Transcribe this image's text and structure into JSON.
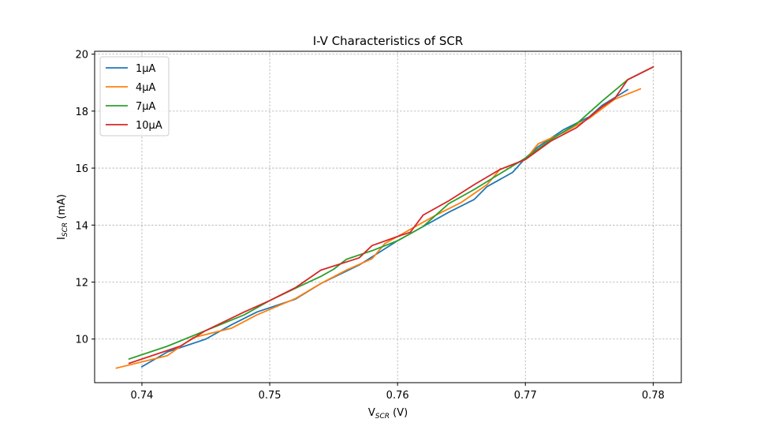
{
  "chart_data": {
    "type": "line",
    "title": "I-V Characteristics of SCR",
    "xlabel": {
      "main": "V",
      "sub": "SCR",
      "unit": " (V)"
    },
    "ylabel": {
      "main": "I",
      "sub": "SCR",
      "unit": " (mA)"
    },
    "xlim": [
      0.7363,
      0.7822
    ],
    "ylim": [
      8.47,
      20.1
    ],
    "xticks": [
      0.74,
      0.75,
      0.76,
      0.77,
      0.78
    ],
    "xtick_labels": [
      "0.74",
      "0.75",
      "0.76",
      "0.77",
      "0.78"
    ],
    "yticks": [
      10,
      12,
      14,
      16,
      18,
      20
    ],
    "ytick_labels": [
      "10",
      "12",
      "14",
      "16",
      "18",
      "20"
    ],
    "grid": true,
    "legend_position": "top-left",
    "series": [
      {
        "name": "1μA",
        "color": "#1f77b4",
        "points": [
          [
            0.74,
            9.03
          ],
          [
            0.742,
            9.55
          ],
          [
            0.745,
            10.0
          ],
          [
            0.747,
            10.5
          ],
          [
            0.749,
            10.95
          ],
          [
            0.752,
            11.4
          ],
          [
            0.754,
            11.95
          ],
          [
            0.757,
            12.6
          ],
          [
            0.76,
            13.45
          ],
          [
            0.762,
            13.95
          ],
          [
            0.764,
            14.45
          ],
          [
            0.766,
            14.9
          ],
          [
            0.767,
            15.35
          ],
          [
            0.769,
            15.85
          ],
          [
            0.77,
            16.35
          ],
          [
            0.771,
            16.75
          ],
          [
            0.773,
            17.35
          ],
          [
            0.775,
            17.8
          ],
          [
            0.776,
            18.2
          ],
          [
            0.778,
            18.75
          ]
        ]
      },
      {
        "name": "4μA",
        "color": "#ff7f0e",
        "points": [
          [
            0.738,
            8.98
          ],
          [
            0.742,
            9.42
          ],
          [
            0.744,
            10.05
          ],
          [
            0.747,
            10.38
          ],
          [
            0.749,
            10.85
          ],
          [
            0.752,
            11.42
          ],
          [
            0.754,
            11.95
          ],
          [
            0.756,
            12.42
          ],
          [
            0.758,
            12.82
          ],
          [
            0.759,
            13.35
          ],
          [
            0.761,
            13.85
          ],
          [
            0.763,
            14.35
          ],
          [
            0.765,
            14.8
          ],
          [
            0.767,
            15.42
          ],
          [
            0.768,
            15.95
          ],
          [
            0.77,
            16.3
          ],
          [
            0.771,
            16.85
          ],
          [
            0.773,
            17.25
          ],
          [
            0.775,
            17.75
          ],
          [
            0.777,
            18.42
          ],
          [
            0.779,
            18.78
          ]
        ]
      },
      {
        "name": "7μA",
        "color": "#2ca02c",
        "points": [
          [
            0.739,
            9.3
          ],
          [
            0.742,
            9.75
          ],
          [
            0.745,
            10.3
          ],
          [
            0.748,
            10.85
          ],
          [
            0.75,
            11.35
          ],
          [
            0.752,
            11.78
          ],
          [
            0.754,
            12.2
          ],
          [
            0.755,
            12.45
          ],
          [
            0.756,
            12.8
          ],
          [
            0.758,
            13.1
          ],
          [
            0.76,
            13.45
          ],
          [
            0.762,
            13.95
          ],
          [
            0.764,
            14.75
          ],
          [
            0.766,
            15.25
          ],
          [
            0.768,
            15.8
          ],
          [
            0.77,
            16.35
          ],
          [
            0.772,
            17.0
          ],
          [
            0.774,
            17.55
          ],
          [
            0.776,
            18.35
          ],
          [
            0.778,
            19.1
          ],
          [
            0.78,
            19.55
          ]
        ]
      },
      {
        "name": "10μA",
        "color": "#d62728",
        "points": [
          [
            0.739,
            9.15
          ],
          [
            0.741,
            9.45
          ],
          [
            0.743,
            9.75
          ],
          [
            0.745,
            10.3
          ],
          [
            0.748,
            10.95
          ],
          [
            0.75,
            11.35
          ],
          [
            0.752,
            11.8
          ],
          [
            0.754,
            12.42
          ],
          [
            0.757,
            12.85
          ],
          [
            0.758,
            13.28
          ],
          [
            0.76,
            13.6
          ],
          [
            0.761,
            13.75
          ],
          [
            0.762,
            14.35
          ],
          [
            0.764,
            14.85
          ],
          [
            0.766,
            15.42
          ],
          [
            0.768,
            15.95
          ],
          [
            0.77,
            16.3
          ],
          [
            0.772,
            16.95
          ],
          [
            0.774,
            17.42
          ],
          [
            0.776,
            18.15
          ],
          [
            0.777,
            18.45
          ],
          [
            0.778,
            19.1
          ],
          [
            0.78,
            19.55
          ]
        ]
      }
    ]
  }
}
